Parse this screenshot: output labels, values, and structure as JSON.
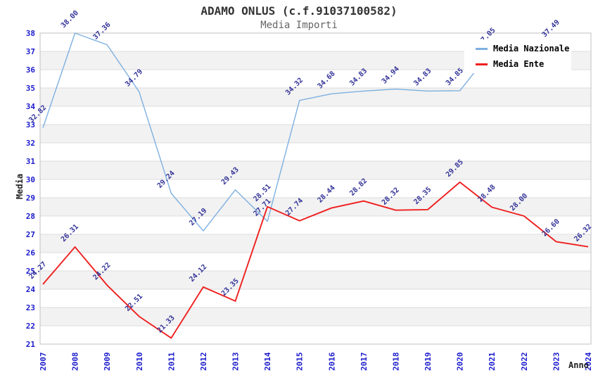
{
  "header": {
    "title": "ADAMO ONLUS (c.f.91037100582)",
    "subtitle": "Media Importi"
  },
  "legend": {
    "position": "top-right",
    "items": [
      {
        "label": "Media Nazionale",
        "color": "#7db0e0"
      },
      {
        "label": "Media Ente",
        "color": "#ef1f1f"
      }
    ]
  },
  "axes": {
    "y_title": "Media",
    "x_title": "Anno",
    "y_ticks": [
      21,
      22,
      23,
      24,
      25,
      26,
      27,
      28,
      29,
      30,
      31,
      32,
      33,
      34,
      35,
      36,
      37,
      38
    ],
    "x_ticks": [
      "2007",
      "2008",
      "2009",
      "2010",
      "2011",
      "2012",
      "2013",
      "2014",
      "2015",
      "2016",
      "2017",
      "2018",
      "2019",
      "2020",
      "2021",
      "2022",
      "2023",
      "2024"
    ]
  },
  "chart_data": {
    "type": "line",
    "title": "ADAMO ONLUS (c.f.91037100582)",
    "subtitle": "Media Importi",
    "xlabel": "Anno",
    "ylabel": "Media",
    "x": [
      2007,
      2008,
      2009,
      2010,
      2011,
      2012,
      2013,
      2014,
      2015,
      2016,
      2017,
      2018,
      2019,
      2020,
      2021,
      2022,
      2023,
      2024
    ],
    "ylim": [
      21,
      38
    ],
    "grid": "horizontal gridlines with alternating gray bands",
    "legend_position": "top-right overlapping plot",
    "point_labels": "each point labeled with value, rotated 45deg, navy",
    "series": [
      {
        "name": "Media Nazionale",
        "color": "#7db0e0",
        "values": [
          32.82,
          38.0,
          37.36,
          34.79,
          29.24,
          27.19,
          29.43,
          27.71,
          34.32,
          34.68,
          34.83,
          34.94,
          34.83,
          34.85,
          37.05,
          null,
          37.49,
          null
        ],
        "note": "2022 point hidden behind legend box; no 2024 point visible; 37.05 label partially covered by legend"
      },
      {
        "name": "Media Ente",
        "color": "#ef1f1f",
        "values": [
          24.27,
          26.31,
          24.22,
          22.51,
          21.33,
          24.12,
          23.35,
          28.51,
          27.74,
          28.44,
          28.82,
          28.32,
          28.35,
          29.85,
          28.48,
          28.0,
          26.6,
          26.32
        ]
      }
    ]
  },
  "colors": {
    "background": "#ffffff",
    "band": "#f2f2f2",
    "grid_line": "#dcdcdc",
    "plot_border": "#c0c0c0",
    "tick_label": "#1a1acc",
    "data_label": "#333399",
    "axis_title": "#222222",
    "title": "#333333",
    "subtitle": "#666666",
    "legend_bg": "#ffffff"
  }
}
